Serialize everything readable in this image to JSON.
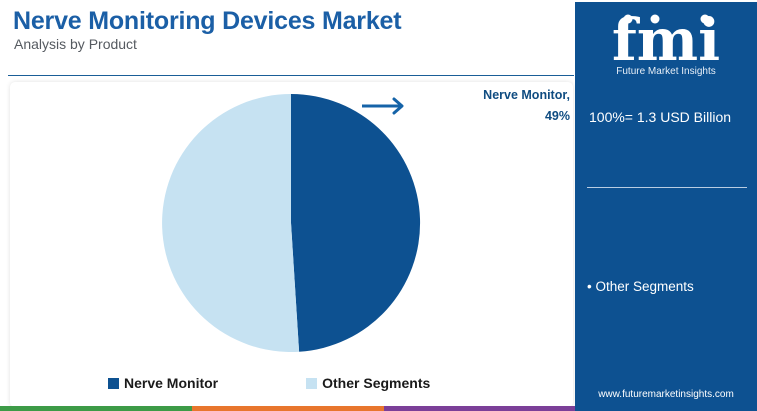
{
  "header": {
    "title": "Nerve Monitoring Devices Market",
    "subtitle": "Analysis by Product"
  },
  "callout": {
    "line1": "Nerve Monitor,",
    "line2": "49%"
  },
  "side_panel": {
    "logo_text": "fmi",
    "logo_tagline": "Future Market Insights",
    "total_label": "100%= 1.3 USD Billion",
    "other_segments_label": "• Other Segments",
    "footer_url": "www.futuremarketinsights.com"
  },
  "legend": [
    {
      "label": "Nerve Monitor",
      "color": "#0d5191"
    },
    {
      "label": "Other Segments",
      "color": "#c6e2f2"
    }
  ],
  "colors": {
    "title": "#1b5fa6",
    "primary": "#0d5191",
    "secondary": "#c6e2f2",
    "arrow": "#1563a8",
    "bottom_bar": [
      "#3d9b47",
      "#e8762d",
      "#7b3f98"
    ]
  },
  "chart_data": {
    "type": "pie",
    "title": "Nerve Monitoring Devices Market",
    "subtitle": "Analysis by Product",
    "slices": [
      {
        "label": "Nerve Monitor",
        "value": 49,
        "color": "#0d5191"
      },
      {
        "label": "Other Segments",
        "value": 51,
        "color": "#c6e2f2"
      }
    ],
    "start_angle": "12 o'clock",
    "direction": "clockwise",
    "data_labels": [
      "Nerve Monitor, 49%"
    ],
    "legend_position": "bottom",
    "unit": "%"
  }
}
